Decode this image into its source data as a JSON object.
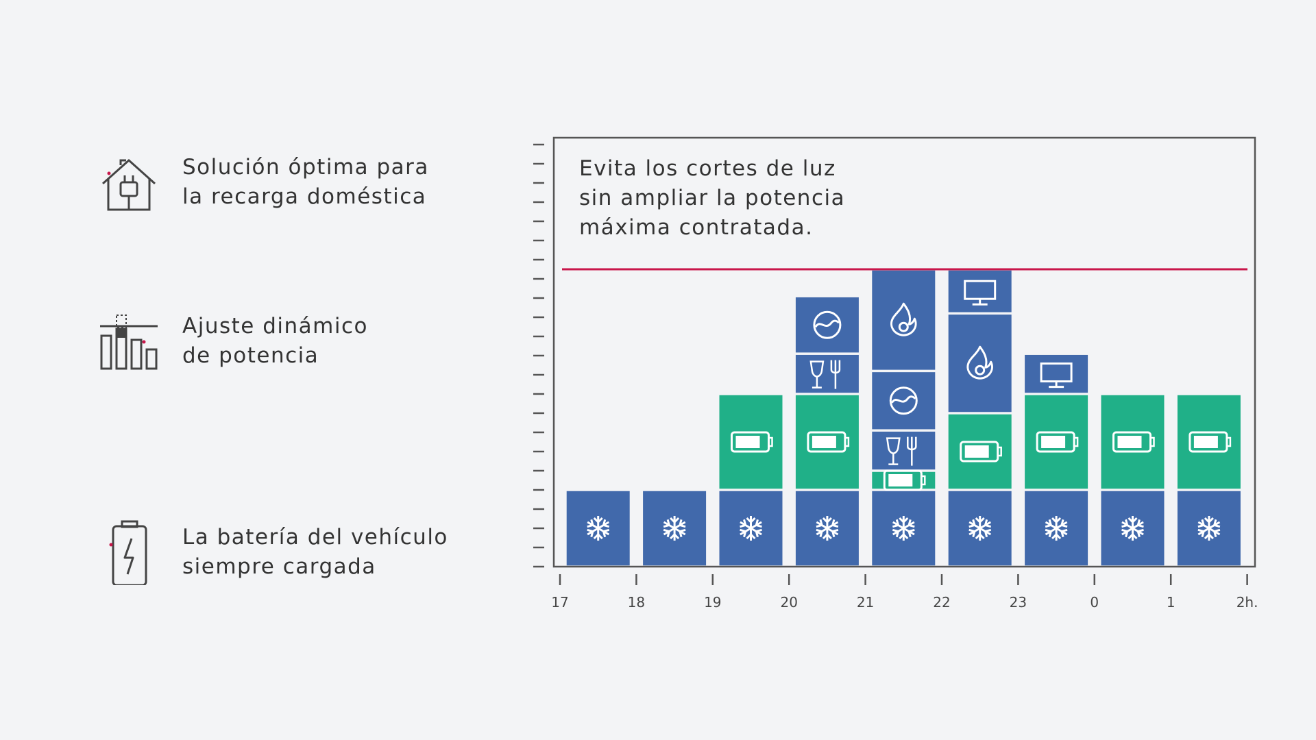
{
  "features": [
    {
      "line1": "Solución óptima para",
      "line2": "la recarga doméstica",
      "icon": "house-plug-icon"
    },
    {
      "line1": "Ajuste dinámico",
      "line2": "de potencia",
      "icon": "power-bars-icon"
    },
    {
      "line1": "La batería del vehículo",
      "line2": "siempre cargada",
      "icon": "phone-battery-icon"
    }
  ],
  "colors": {
    "blue": "#4169ab",
    "green": "#20b088",
    "limit": "#c8164a",
    "axis": "#555555",
    "accent": "#c8164a"
  },
  "chart_data": {
    "type": "bar",
    "stacked": true,
    "title_lines": [
      "Evita los cortes de luz",
      "sin ampliar la potencia",
      "máxima contratada."
    ],
    "x_ticks": [
      "17",
      "18",
      "19",
      "20",
      "21",
      "22",
      "23",
      "0",
      "1",
      "2h."
    ],
    "ylim": [
      0,
      22
    ],
    "y_tick_count": 23,
    "grid": false,
    "limit_line": 15.5,
    "units_note": "stacked power blocks per hour slot, y in arbitrary power units",
    "bars": [
      {
        "slot": "17-18",
        "segments": [
          {
            "appliance": "fridge",
            "value": 4,
            "color": "blue"
          }
        ]
      },
      {
        "slot": "18-19",
        "segments": [
          {
            "appliance": "fridge",
            "value": 4,
            "color": "blue"
          }
        ]
      },
      {
        "slot": "19-20",
        "segments": [
          {
            "appliance": "fridge",
            "value": 4,
            "color": "blue"
          },
          {
            "appliance": "ev-charging",
            "value": 5,
            "color": "green"
          }
        ]
      },
      {
        "slot": "20-21",
        "segments": [
          {
            "appliance": "fridge",
            "value": 4,
            "color": "blue"
          },
          {
            "appliance": "ev-charging",
            "value": 5,
            "color": "green"
          },
          {
            "appliance": "dishwasher",
            "value": 2.1,
            "color": "blue"
          },
          {
            "appliance": "washing-machine",
            "value": 3,
            "color": "blue"
          }
        ]
      },
      {
        "slot": "21-22",
        "segments": [
          {
            "appliance": "fridge",
            "value": 4,
            "color": "blue"
          },
          {
            "appliance": "ev-charging",
            "value": 1,
            "color": "green"
          },
          {
            "appliance": "dishwasher",
            "value": 2.1,
            "color": "blue"
          },
          {
            "appliance": "washing-machine",
            "value": 3.1,
            "color": "blue"
          },
          {
            "appliance": "heater",
            "value": 5.3,
            "color": "blue"
          }
        ]
      },
      {
        "slot": "22-23",
        "segments": [
          {
            "appliance": "fridge",
            "value": 4,
            "color": "blue"
          },
          {
            "appliance": "ev-charging",
            "value": 4,
            "color": "green"
          },
          {
            "appliance": "heater",
            "value": 5.2,
            "color": "blue"
          },
          {
            "appliance": "tv",
            "value": 2.3,
            "color": "blue"
          }
        ]
      },
      {
        "slot": "23-0",
        "segments": [
          {
            "appliance": "fridge",
            "value": 4,
            "color": "blue"
          },
          {
            "appliance": "ev-charging",
            "value": 5,
            "color": "green"
          },
          {
            "appliance": "tv",
            "value": 2.1,
            "color": "blue"
          }
        ]
      },
      {
        "slot": "0-1",
        "segments": [
          {
            "appliance": "fridge",
            "value": 4,
            "color": "blue"
          },
          {
            "appliance": "ev-charging",
            "value": 5,
            "color": "green"
          }
        ]
      },
      {
        "slot": "1-2",
        "segments": [
          {
            "appliance": "fridge",
            "value": 4,
            "color": "blue"
          },
          {
            "appliance": "ev-charging",
            "value": 5,
            "color": "green"
          }
        ]
      }
    ]
  }
}
